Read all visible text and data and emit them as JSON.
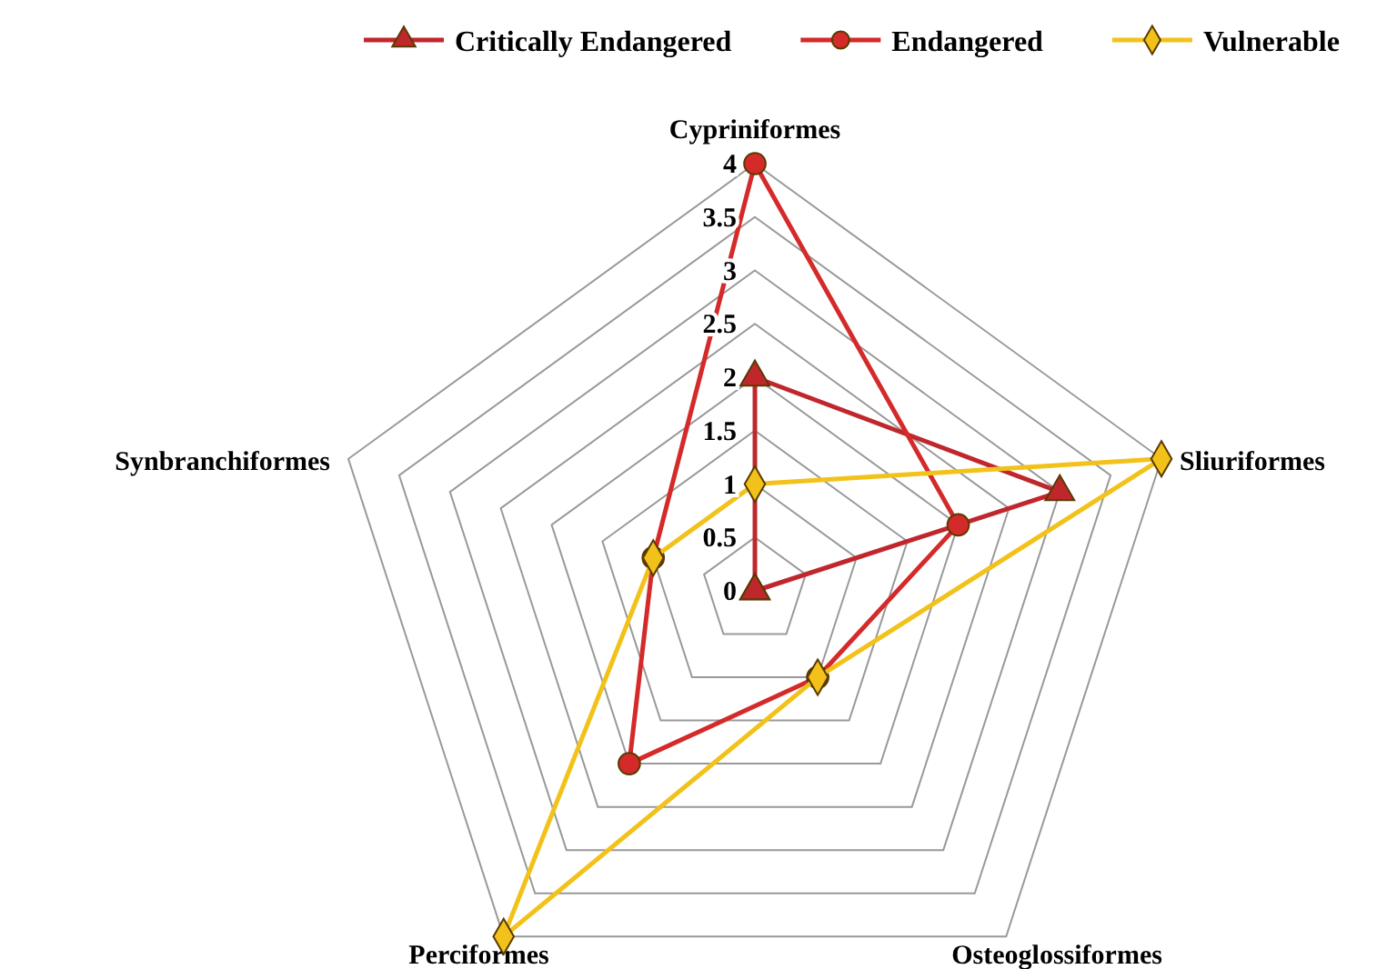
{
  "chart_data": {
    "type": "radar",
    "categories": [
      "Cypriniformes",
      "Sliuriformes",
      "Osteoglossiformes",
      "Perciformes",
      "Synbranchiformes"
    ],
    "series": [
      {
        "name": "Critically Endangered",
        "color": "#c0272d",
        "marker": "triangle",
        "values": [
          2,
          3,
          0,
          0,
          0
        ]
      },
      {
        "name": "Endangered",
        "color": "#d42a2a",
        "marker": "circle",
        "values": [
          4,
          2,
          1,
          2,
          1
        ]
      },
      {
        "name": "Vulnerable",
        "color": "#f2c21b",
        "marker": "diamond",
        "values": [
          1,
          4,
          1,
          4,
          1
        ]
      }
    ],
    "ylim": [
      0,
      4
    ],
    "yticks": [
      0,
      0.5,
      1,
      1.5,
      2,
      2.5,
      3,
      3.5,
      4
    ],
    "grid": true,
    "legend": "top"
  }
}
